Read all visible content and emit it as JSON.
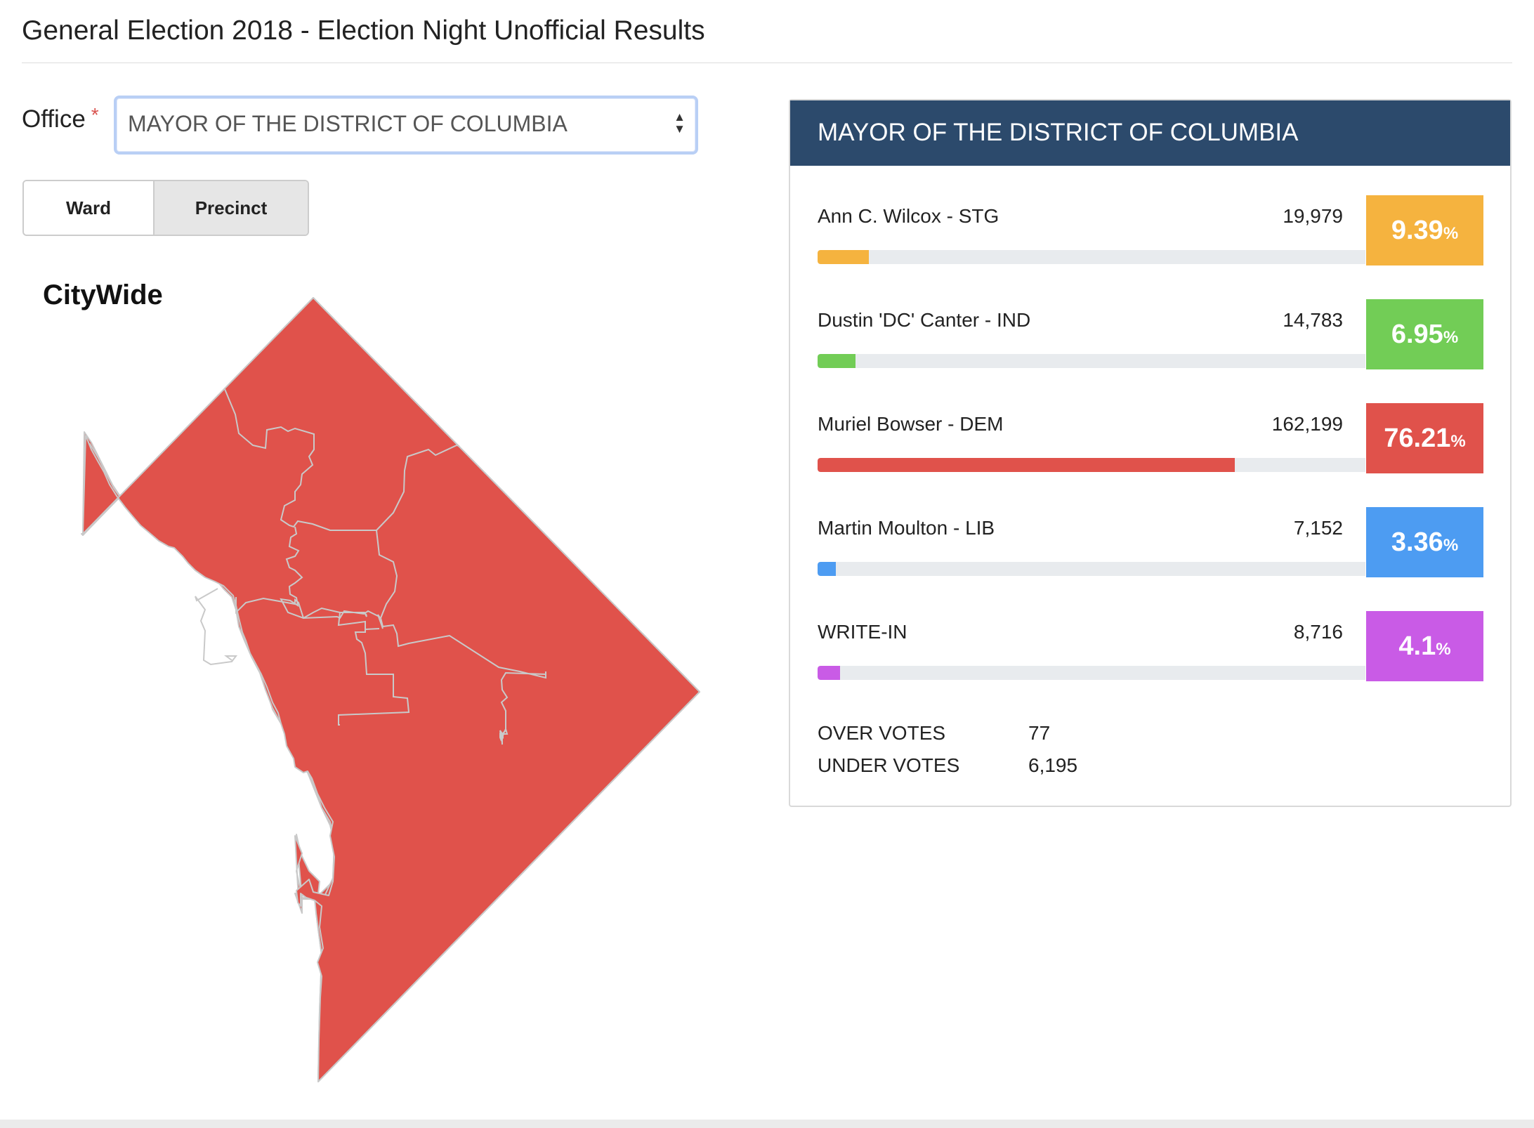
{
  "page": {
    "title": "General Election 2018 - Election Night Unofficial Results"
  },
  "office": {
    "label": "Office",
    "required_mark": "*",
    "selected": "MAYOR OF THE DISTRICT OF COLUMBIA"
  },
  "view_toggle": {
    "ward_label": "Ward",
    "precinct_label": "Precinct",
    "active": "Precinct"
  },
  "map": {
    "title": "CityWide",
    "fill_color": "#e0524b",
    "border_color": "#c9c9c9"
  },
  "results": {
    "header": "MAYOR OF THE DISTRICT OF COLUMBIA",
    "candidates": [
      {
        "name": "Ann C. Wilcox - STG",
        "votes": "19,979",
        "percent": "9.39",
        "color": "#f5b33f"
      },
      {
        "name": "Dustin 'DC' Canter - IND",
        "votes": "14,783",
        "percent": "6.95",
        "color": "#72cd56"
      },
      {
        "name": "Muriel Bowser - DEM",
        "votes": "162,199",
        "percent": "76.21",
        "color": "#e0524b"
      },
      {
        "name": "Martin Moulton - LIB",
        "votes": "7,152",
        "percent": "3.36",
        "color": "#4d9cf2"
      },
      {
        "name": "WRITE-IN",
        "votes": "8,716",
        "percent": "4.1",
        "color": "#c95be6"
      }
    ],
    "percent_sign": "%",
    "over_votes": {
      "label": "OVER VOTES",
      "value": "77"
    },
    "under_votes": {
      "label": "UNDER VOTES",
      "value": "6,195"
    }
  }
}
